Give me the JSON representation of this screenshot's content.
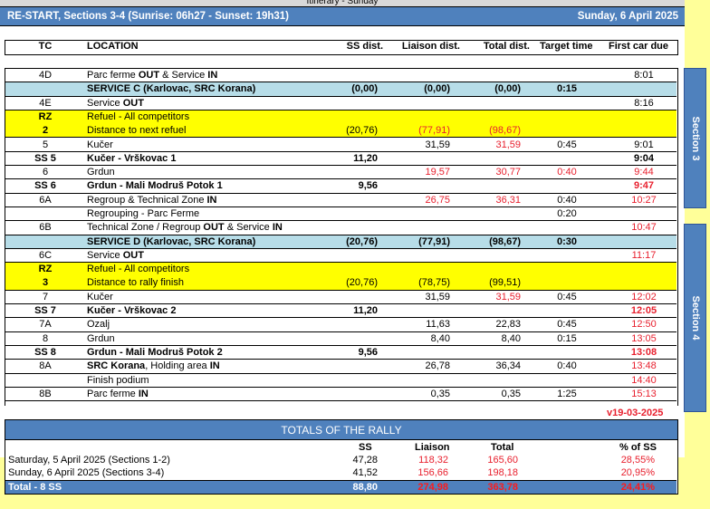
{
  "top_partial_title": "Itinerary - Sunday",
  "header": {
    "title": "RE-START, Sections 3-4 (Sunrise: 06h27 - Sunset: 19h31)",
    "date": "Sunday, 6 April 2025"
  },
  "columns": {
    "tc": "TC",
    "loc": "LOCATION",
    "ss": "SS dist.",
    "li": "Liaison dist.",
    "to": "Total dist.",
    "tt": "Target time",
    "fc": "First car due"
  },
  "rows": [
    {
      "type": "normal",
      "tc": "4D",
      "loc": [
        {
          "t": "Parc ferme "
        },
        {
          "t": "OUT",
          "b": 1
        },
        {
          "t": " & Service "
        },
        {
          "t": "IN",
          "b": 1
        }
      ],
      "fc": "8:01"
    },
    {
      "type": "service",
      "loc": [
        {
          "t": "SERVICE C (Karlovac, SRC Korana)"
        }
      ],
      "ss": "(0,00)",
      "li": "(0,00)",
      "to": "(0,00)",
      "tt": "0:15"
    },
    {
      "type": "normal",
      "tc": "4E",
      "loc": [
        {
          "t": "Service "
        },
        {
          "t": "OUT",
          "b": 1
        }
      ],
      "fc": "8:16"
    },
    {
      "type": "refuel",
      "tc": "RZ",
      "tc2": "2",
      "loc": [
        {
          "t": "Refuel - All competitors"
        }
      ],
      "loc2": "Distance to next refuel",
      "ss": "(20,76)",
      "li": "(77,91)",
      "to": "(98,67)",
      "red": [
        "li",
        "to"
      ]
    },
    {
      "type": "normal",
      "tc": "5",
      "loc": [
        {
          "t": "Kučer"
        }
      ],
      "li": "31,59",
      "to": "31,59",
      "tt": "0:45",
      "fc": "9:01",
      "red": [
        "to"
      ]
    },
    {
      "type": "ss",
      "tc": "SS 5",
      "loc": [
        {
          "t": "Kučer - Vrškovac 1"
        }
      ],
      "ss": "11,20",
      "fc": "9:04"
    },
    {
      "type": "normal",
      "tc": "6",
      "loc": [
        {
          "t": "Grdun"
        }
      ],
      "li": "19,57",
      "to": "30,77",
      "tt": "0:40",
      "fc": "9:44",
      "red": [
        "li",
        "to",
        "tt",
        "fc"
      ]
    },
    {
      "type": "ss",
      "tc": "SS 6",
      "loc": [
        {
          "t": "Grdun - Mali Modruš Potok 1"
        }
      ],
      "ss": "9,56",
      "fc": "9:47",
      "red": [
        "fc"
      ]
    },
    {
      "type": "normal",
      "tc": "6A",
      "loc": [
        {
          "t": "Regroup & Technical Zone "
        },
        {
          "t": "IN",
          "b": 1
        }
      ],
      "li": "26,75",
      "to": "36,31",
      "tt": "0:40",
      "fc": "10:27",
      "red": [
        "li",
        "to",
        "fc"
      ]
    },
    {
      "type": "normal",
      "loc": [
        {
          "t": "Regrouping - Parc Ferme"
        }
      ],
      "tt": "0:20"
    },
    {
      "type": "normal",
      "tc": "6B",
      "loc": [
        {
          "t": "Technical Zone / Regroup "
        },
        {
          "t": "OUT",
          "b": 1
        },
        {
          "t": " & Service "
        },
        {
          "t": "IN",
          "b": 1
        }
      ],
      "fc": "10:47",
      "red": [
        "fc"
      ]
    },
    {
      "type": "service",
      "loc": [
        {
          "t": "SERVICE D (Karlovac, SRC Korana)"
        }
      ],
      "ss": "(20,76)",
      "li": "(77,91)",
      "to": "(98,67)",
      "tt": "0:30"
    },
    {
      "type": "normal",
      "tc": "6C",
      "loc": [
        {
          "t": "Service "
        },
        {
          "t": "OUT",
          "b": 1
        }
      ],
      "fc": "11:17",
      "red": [
        "fc"
      ]
    },
    {
      "type": "refuel",
      "tc": "RZ",
      "tc2": "3",
      "loc": [
        {
          "t": "Refuel - All competitors"
        }
      ],
      "loc2": "Distance to rally finish",
      "ss": "(20,76)",
      "li": "(78,75)",
      "to": "(99,51)"
    },
    {
      "type": "normal",
      "tc": "7",
      "loc": [
        {
          "t": "Kučer"
        }
      ],
      "li": "31,59",
      "to": "31,59",
      "tt": "0:45",
      "fc": "12:02",
      "red": [
        "to",
        "fc"
      ]
    },
    {
      "type": "ss",
      "tc": "SS 7",
      "loc": [
        {
          "t": "Kučer - Vrškovac 2"
        }
      ],
      "ss": "11,20",
      "fc": "12:05",
      "red": [
        "fc"
      ]
    },
    {
      "type": "normal",
      "tc": "7A",
      "loc": [
        {
          "t": "Ozalj"
        }
      ],
      "li": "11,63",
      "to": "22,83",
      "tt": "0:45",
      "fc": "12:50",
      "red": [
        "fc"
      ]
    },
    {
      "type": "normal",
      "tc": "8",
      "loc": [
        {
          "t": "Grdun"
        }
      ],
      "li": "8,40",
      "to": "8,40",
      "tt": "0:15",
      "fc": "13:05",
      "red": [
        "fc"
      ]
    },
    {
      "type": "ss",
      "tc": "SS 8",
      "loc": [
        {
          "t": "Grdun - Mali Modruš Potok 2"
        }
      ],
      "ss": "9,56",
      "fc": "13:08",
      "red": [
        "fc"
      ]
    },
    {
      "type": "normal",
      "tc": "8A",
      "loc": [
        {
          "t": "SRC Korana",
          "b": 1
        },
        {
          "t": ", Holding area "
        },
        {
          "t": "IN",
          "b": 1
        }
      ],
      "li": "26,78",
      "to": "36,34",
      "tt": "0:40",
      "fc": "13:48",
      "red": [
        "fc"
      ]
    },
    {
      "type": "normal",
      "loc": [
        {
          "t": "Finish podium"
        }
      ],
      "fc": "14:40",
      "red": [
        "fc"
      ]
    },
    {
      "type": "normal",
      "tc": "8B",
      "loc": [
        {
          "t": "Parc ferme "
        },
        {
          "t": "IN",
          "b": 1
        }
      ],
      "li": "0,35",
      "to": "0,35",
      "tt": "1:25",
      "fc": "15:13",
      "red": [
        "fc"
      ]
    }
  ],
  "sections": [
    "Section 3",
    "Section 4"
  ],
  "version": "v19-03-2025",
  "totals": {
    "title": "TOTALS OF THE RALLY",
    "cols": {
      "ss": "SS",
      "li": "Liaison",
      "to": "Total",
      "pct": "% of SS"
    },
    "rows": [
      {
        "label": "Saturday, 5 April 2025 (Sections 1-2)",
        "ss": "47,28",
        "li": "118,32",
        "to": "165,60",
        "pct": "28,55%"
      },
      {
        "label": "Sunday, 6 April 2025 (Sections 3-4)",
        "ss": "41,52",
        "li": "156,66",
        "to": "198,18",
        "pct": "20,95%"
      }
    ],
    "total": {
      "label": "Total - 8 SS",
      "ss": "88,80",
      "li": "274,98",
      "to": "363,78",
      "pct": "24,41%"
    }
  },
  "colors": {
    "blue": "#4f81bd",
    "service": "#b7dde8",
    "refuel": "#ffff00",
    "red": "#e8202e"
  }
}
